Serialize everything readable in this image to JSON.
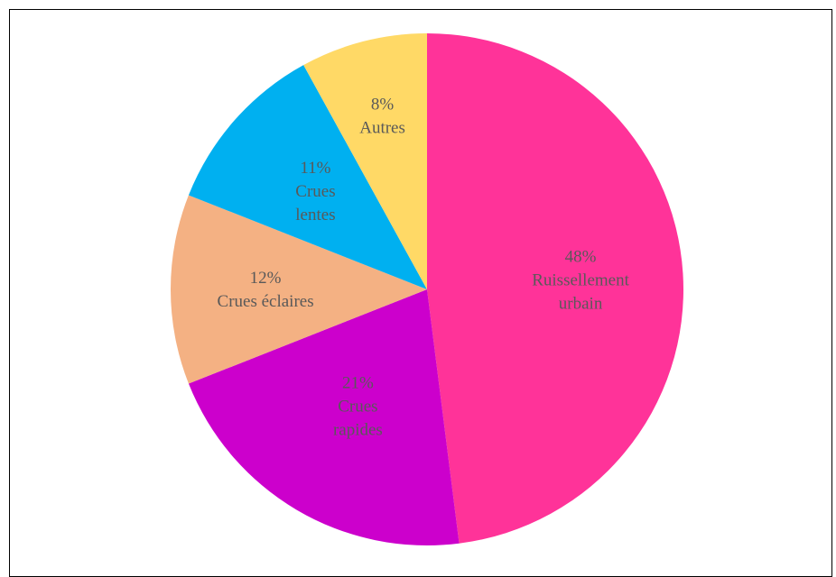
{
  "chart_data": {
    "type": "pie",
    "title": "",
    "slices": [
      {
        "label_line1": "Ruissellement",
        "label_line2": "urbain",
        "value": 48,
        "pct": "48%",
        "color": "#FF3399"
      },
      {
        "label_line1": "Crues",
        "label_line2": "rapides",
        "value": 21,
        "pct": "21%",
        "color": "#CC00CC"
      },
      {
        "label_line1": "Crues éclaires",
        "label_line2": "",
        "value": 12,
        "pct": "12%",
        "color": "#F4B183"
      },
      {
        "label_line1": "Crues",
        "label_line2": "lentes",
        "value": 11,
        "pct": "11%",
        "color": "#00B0F0"
      },
      {
        "label_line1": "Autres",
        "label_line2": "",
        "value": 8,
        "pct": "8%",
        "color": "#FFD966"
      }
    ],
    "start": "12 o'clock",
    "direction": "clockwise",
    "legend": "none"
  }
}
